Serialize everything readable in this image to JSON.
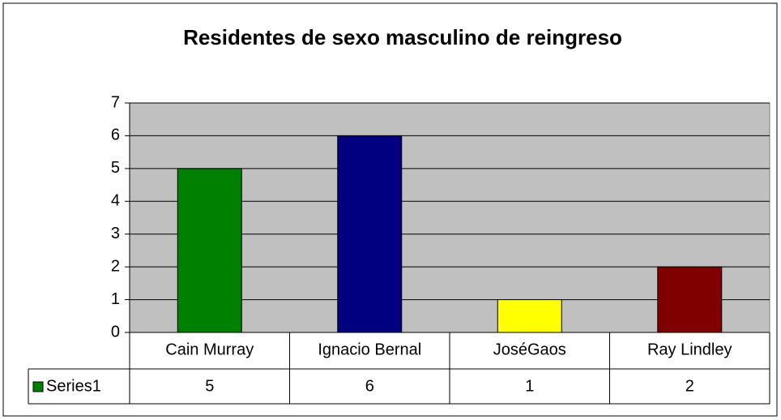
{
  "chart_data": {
    "type": "bar",
    "title": "Residentes de sexo masculino de reingreso",
    "categories": [
      "Cain Murray",
      "Ignacio Bernal",
      "JoséGaos",
      "Ray Lindley"
    ],
    "series": [
      {
        "name": "Series1",
        "color": "#008000",
        "colors": [
          "#008000",
          "#000080",
          "#ffff00",
          "#800000"
        ],
        "values": [
          5,
          6,
          1,
          2
        ]
      }
    ],
    "ylim": [
      0,
      7
    ],
    "yticks": [
      0,
      1,
      2,
      3,
      4,
      5,
      6,
      7
    ],
    "grid": true,
    "data_table": true
  }
}
